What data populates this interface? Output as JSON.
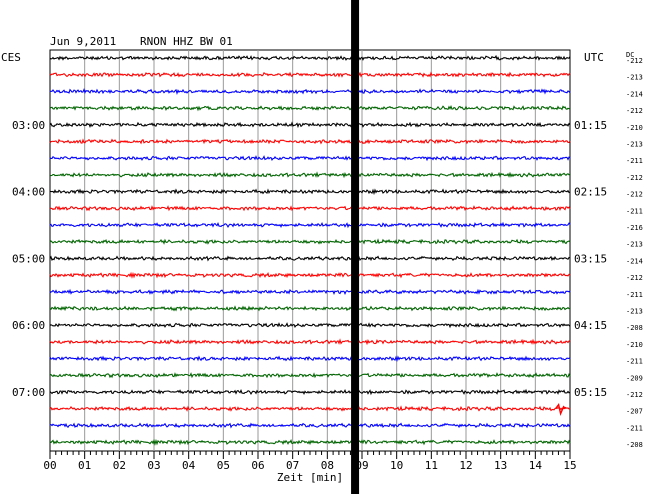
{
  "header": {
    "date": "Jun 9,2011",
    "station": "RNON HHZ BW 01"
  },
  "left_axis_label": "CES",
  "right_axis_label": "UTC",
  "dc_label": "DC",
  "chart_data": {
    "type": "line",
    "title": "Jun 9,2011   RNON HHZ BW 01",
    "xlabel": "Zeit [min]",
    "xlim": [
      0,
      15
    ],
    "x_ticks": [
      "00",
      "01",
      "02",
      "03",
      "04",
      "05",
      "06",
      "07",
      "08",
      "09",
      "10",
      "11",
      "12",
      "13",
      "14",
      "15"
    ],
    "trace_colors": [
      "#000000",
      "#ff0000",
      "#0000ff",
      "#006400"
    ],
    "traces_count": 24,
    "left_hour_labels": [
      {
        "trace": 4,
        "label": "03:00"
      },
      {
        "trace": 8,
        "label": "04:00"
      },
      {
        "trace": 12,
        "label": "05:00"
      },
      {
        "trace": 16,
        "label": "06:00"
      },
      {
        "trace": 20,
        "label": "07:00"
      }
    ],
    "right_hour_labels": [
      {
        "trace": 4,
        "label": "01:15"
      },
      {
        "trace": 8,
        "label": "02:15"
      },
      {
        "trace": 12,
        "label": "03:15"
      },
      {
        "trace": 16,
        "label": "04:15"
      },
      {
        "trace": 20,
        "label": "05:15"
      }
    ],
    "dc_offsets": [
      "-212",
      "-213",
      "-214",
      "-212",
      "-210",
      "-213",
      "-211",
      "-212",
      "-212",
      "-211",
      "-216",
      "-213",
      "-214",
      "-212",
      "-211",
      "-213",
      "-208",
      "-210",
      "-211",
      "-209",
      "-212",
      "-207",
      "-211",
      "-208"
    ],
    "gap_minute": 8.8,
    "spike": {
      "trace": 21,
      "minute": 14.7
    }
  }
}
